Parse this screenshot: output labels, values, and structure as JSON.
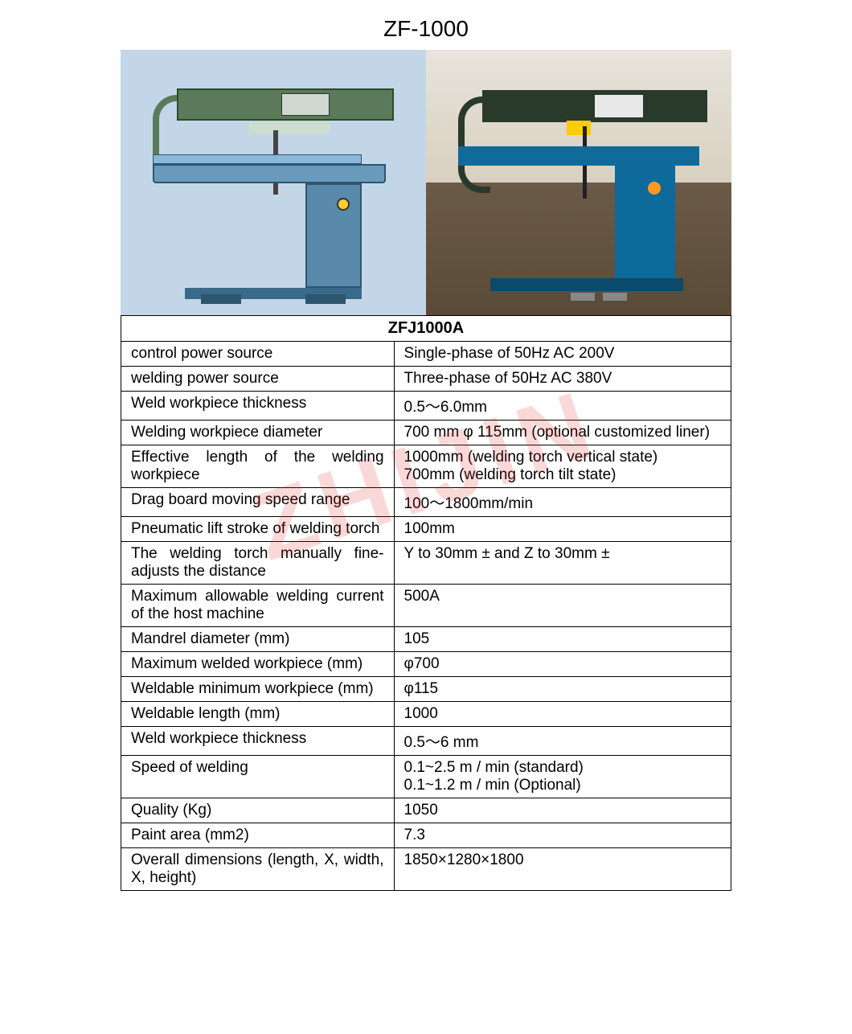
{
  "title": "ZF-1000",
  "table_header": "ZFJ1000A",
  "watermark": "ZHIJIN",
  "rows": [
    {
      "label": "control power source",
      "value": "Single-phase of 50Hz AC 200V"
    },
    {
      "label": "welding power source",
      "value": "Three-phase of 50Hz AC 380V"
    },
    {
      "label": "Weld workpiece thickness",
      "value": "0.5～6.0mm"
    },
    {
      "label": "Welding workpiece diameter",
      "value": "700 mm φ 115mm (optional customized liner)"
    },
    {
      "label": "Effective length of the welding workpiece",
      "value": "1000mm (welding torch vertical state)\n700mm (welding torch tilt state)"
    },
    {
      "label": "Drag board moving speed range",
      "value": "100～1800mm/min"
    },
    {
      "label": "Pneumatic lift stroke of welding torch",
      "value": "100mm"
    },
    {
      "label": "The welding torch manually fine-adjusts the distance",
      "value": "Y to 30mm ± and Z to 30mm ±"
    },
    {
      "label": "Maximum allowable welding current of the host machine",
      "value": "500A"
    },
    {
      "label": "Mandrel diameter (mm)",
      "value": "105"
    },
    {
      "label": "Maximum welded workpiece (mm)",
      "value": "φ700"
    },
    {
      "label": "Weldable minimum workpiece (mm)",
      "value": "φ115"
    },
    {
      "label": "Weldable length (mm)",
      "value": "1000"
    },
    {
      "label": "Weld workpiece thickness",
      "value": "0.5～6 mm"
    },
    {
      "label": "Speed of welding",
      "value": "0.1~2.5 m / min (standard)\n0.1~1.2 m / min (Optional)"
    },
    {
      "label": "Quality (Kg)",
      "value": "1050"
    },
    {
      "label": "Paint area (mm2)",
      "value": "7.3"
    },
    {
      "label": "Overall dimensions (length, X, width, X, height)",
      "value": "1850×1280×1800"
    }
  ],
  "colors": {
    "cad_bg": "#c3d6e8",
    "machine_blue": "#106a9a",
    "machine_green": "#2a3a2a",
    "border": "#000000",
    "watermark": "rgba(220,40,40,0.18)"
  }
}
